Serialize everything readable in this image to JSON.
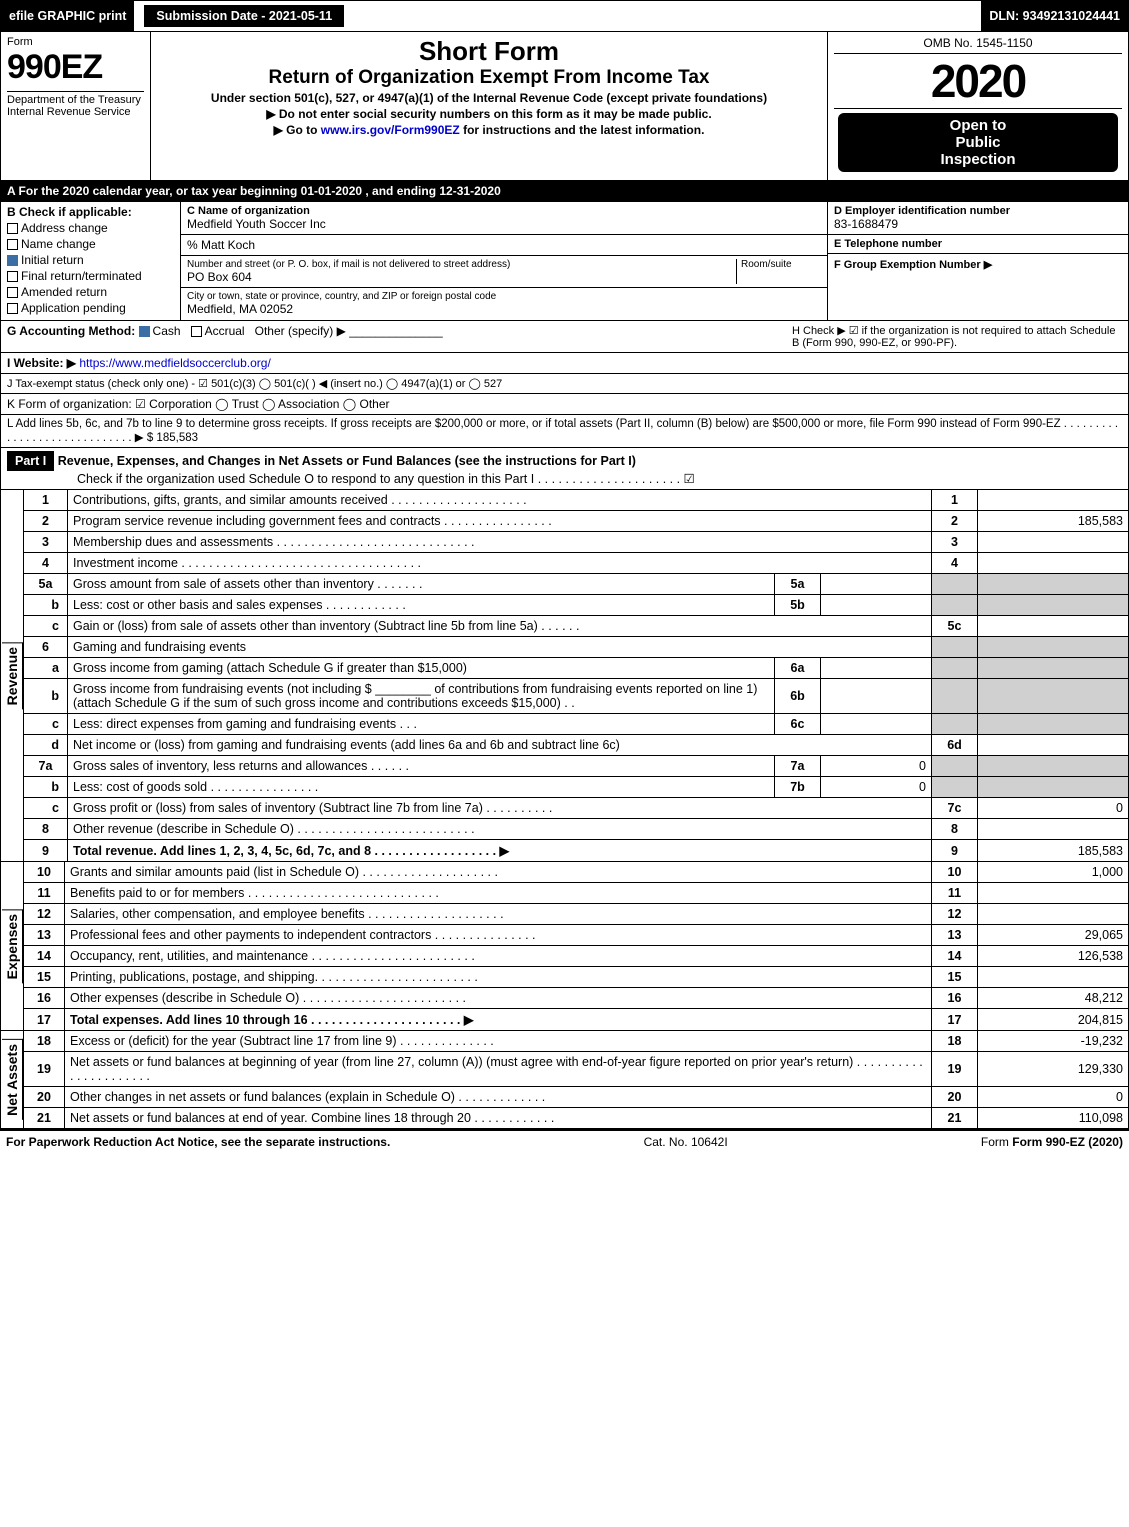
{
  "topbar": {
    "efile": "efile GRAPHIC print",
    "submission": "Submission Date - 2021-05-11",
    "dln": "DLN: 93492131024441"
  },
  "header": {
    "form_word": "Form",
    "form_number": "990EZ",
    "dept1": "Department of the Treasury",
    "dept2": "Internal Revenue Service",
    "title1": "Short Form",
    "title2": "Return of Organization Exempt From Income Tax",
    "subtitle": "Under section 501(c), 527, or 4947(a)(1) of the Internal Revenue Code (except private foundations)",
    "note1": "▶ Do not enter social security numbers on this form as it may be made public.",
    "note2_pre": "▶ Go to ",
    "note2_link": "www.irs.gov/Form990EZ",
    "note2_post": " for instructions and the latest information.",
    "omb": "OMB No. 1545-1150",
    "year": "2020",
    "inspect1": "Open to",
    "inspect2": "Public",
    "inspect3": "Inspection"
  },
  "period": "A  For the 2020 calendar year, or tax year beginning 01-01-2020 , and ending 12-31-2020",
  "section_b": {
    "heading": "B  Check if applicable:",
    "items": [
      {
        "label": "Address change",
        "checked": false
      },
      {
        "label": "Name change",
        "checked": false
      },
      {
        "label": "Initial return",
        "checked": true
      },
      {
        "label": "Final return/terminated",
        "checked": false
      },
      {
        "label": "Amended return",
        "checked": false
      },
      {
        "label": "Application pending",
        "checked": false
      }
    ]
  },
  "section_c": {
    "label_name": "C Name of organization",
    "org_name": "Medfield Youth Soccer Inc",
    "care_of": "% Matt Koch",
    "label_addr": "Number and street (or P. O. box, if mail is not delivered to street address)",
    "room": "Room/suite",
    "address": "PO Box 604",
    "label_city": "City or town, state or province, country, and ZIP or foreign postal code",
    "city": "Medfield, MA  02052"
  },
  "section_d": {
    "label": "D Employer identification number",
    "value": "83-1688479"
  },
  "section_e": {
    "label": "E Telephone number",
    "value": ""
  },
  "section_f": {
    "label": "F Group Exemption Number  ▶",
    "value": ""
  },
  "section_g": {
    "label": "G Accounting Method:",
    "cash": "Cash",
    "accrual": "Accrual",
    "other": "Other (specify) ▶"
  },
  "section_h": {
    "text": "H  Check ▶ ☑ if the organization is not required to attach Schedule B (Form 990, 990-EZ, or 990-PF)."
  },
  "section_i": {
    "label": "I Website: ▶",
    "url": "https://www.medfieldsoccerclub.org/"
  },
  "section_j": {
    "text": "J Tax-exempt status (check only one) - ☑ 501(c)(3)  ◯ 501(c)( ) ◀ (insert no.)  ◯ 4947(a)(1) or  ◯ 527"
  },
  "section_k": {
    "text": "K Form of organization:  ☑ Corporation  ◯ Trust  ◯ Association  ◯ Other"
  },
  "section_l": {
    "text": "L Add lines 5b, 6c, and 7b to line 9 to determine gross receipts. If gross receipts are $200,000 or more, or if total assets (Part II, column (B) below) are $500,000 or more, file Form 990 instead of Form 990-EZ . . . . . . . . . . . . . . . . . . . . . . . . . . . . . ▶ $ 185,583"
  },
  "part1": {
    "label": "Part I",
    "title": "Revenue, Expenses, and Changes in Net Assets or Fund Balances (see the instructions for Part I)",
    "check": "Check if the organization used Schedule O to respond to any question in this Part I . . . . . . . . . . . . . . . . . . . . . ☑"
  },
  "vlabels": {
    "revenue": "Revenue",
    "expenses": "Expenses",
    "netassets": "Net Assets"
  },
  "lines": {
    "l1": {
      "no": "1",
      "desc": "Contributions, gifts, grants, and similar amounts received . . . . . . . . . . . . . . . . . . . .",
      "ref": "1",
      "val": ""
    },
    "l2": {
      "no": "2",
      "desc": "Program service revenue including government fees and contracts . . . . . . . . . . . . . . . .",
      "ref": "2",
      "val": "185,583"
    },
    "l3": {
      "no": "3",
      "desc": "Membership dues and assessments . . . . . . . . . . . . . . . . . . . . . . . . . . . . .",
      "ref": "3",
      "val": ""
    },
    "l4": {
      "no": "4",
      "desc": "Investment income . . . . . . . . . . . . . . . . . . . . . . . . . . . . . . . . . . .",
      "ref": "4",
      "val": ""
    },
    "l5a": {
      "no": "5a",
      "desc": "Gross amount from sale of assets other than inventory . . . . . . .",
      "mid": "5a",
      "midval": ""
    },
    "l5b": {
      "no": "b",
      "desc": "Less: cost or other basis and sales expenses . . . . . . . . . . . .",
      "mid": "5b",
      "midval": ""
    },
    "l5c": {
      "no": "c",
      "desc": "Gain or (loss) from sale of assets other than inventory (Subtract line 5b from line 5a) . . . . . .",
      "ref": "5c",
      "val": ""
    },
    "l6": {
      "no": "6",
      "desc": "Gaming and fundraising events"
    },
    "l6a": {
      "no": "a",
      "desc": "Gross income from gaming (attach Schedule G if greater than $15,000)",
      "mid": "6a",
      "midval": ""
    },
    "l6b": {
      "no": "b",
      "desc1": "Gross income from fundraising events (not including $",
      "desc2": " of contributions from fundraising events reported on line 1) (attach Schedule G if the sum of such gross income and contributions exceeds $15,000)   . .",
      "mid": "6b",
      "midval": ""
    },
    "l6c": {
      "no": "c",
      "desc": "Less: direct expenses from gaming and fundraising events    . . .",
      "mid": "6c",
      "midval": ""
    },
    "l6d": {
      "no": "d",
      "desc": "Net income or (loss) from gaming and fundraising events (add lines 6a and 6b and subtract line 6c)",
      "ref": "6d",
      "val": ""
    },
    "l7a": {
      "no": "7a",
      "desc": "Gross sales of inventory, less returns and allowances . . . . . .",
      "mid": "7a",
      "midval": "0"
    },
    "l7b": {
      "no": "b",
      "desc": "Less: cost of goods sold     . . . . . . . . . . . . . . . .",
      "mid": "7b",
      "midval": "0"
    },
    "l7c": {
      "no": "c",
      "desc": "Gross profit or (loss) from sales of inventory (Subtract line 7b from line 7a) . . . . . . . . . .",
      "ref": "7c",
      "val": "0"
    },
    "l8": {
      "no": "8",
      "desc": "Other revenue (describe in Schedule O) . . . . . . . . . . . . . . . . . . . . . . . . . .",
      "ref": "8",
      "val": ""
    },
    "l9": {
      "no": "9",
      "desc": "Total revenue. Add lines 1, 2, 3, 4, 5c, 6d, 7c, and 8  . . . . . . . . . . . . . . . . . .  ▶",
      "ref": "9",
      "val": "185,583"
    },
    "l10": {
      "no": "10",
      "desc": "Grants and similar amounts paid (list in Schedule O) . . . . . . . . . . . . . . . . . . . .",
      "ref": "10",
      "val": "1,000"
    },
    "l11": {
      "no": "11",
      "desc": "Benefits paid to or for members   . . . . . . . . . . . . . . . . . . . . . . . . . . . .",
      "ref": "11",
      "val": ""
    },
    "l12": {
      "no": "12",
      "desc": "Salaries, other compensation, and employee benefits . . . . . . . . . . . . . . . . . . . .",
      "ref": "12",
      "val": ""
    },
    "l13": {
      "no": "13",
      "desc": "Professional fees and other payments to independent contractors . . . . . . . . . . . . . . .",
      "ref": "13",
      "val": "29,065"
    },
    "l14": {
      "no": "14",
      "desc": "Occupancy, rent, utilities, and maintenance . . . . . . . . . . . . . . . . . . . . . . . .",
      "ref": "14",
      "val": "126,538"
    },
    "l15": {
      "no": "15",
      "desc": "Printing, publications, postage, and shipping. . . . . . . . . . . . . . . . . . . . . . . .",
      "ref": "15",
      "val": ""
    },
    "l16": {
      "no": "16",
      "desc": "Other expenses (describe in Schedule O)    . . . . . . . . . . . . . . . . . . . . . . . .",
      "ref": "16",
      "val": "48,212"
    },
    "l17": {
      "no": "17",
      "desc": "Total expenses. Add lines 10 through 16    . . . . . . . . . . . . . . . . . . . . . .  ▶",
      "ref": "17",
      "val": "204,815"
    },
    "l18": {
      "no": "18",
      "desc": "Excess or (deficit) for the year (Subtract line 17 from line 9)      . . . . . . . . . . . . . .",
      "ref": "18",
      "val": "-19,232"
    },
    "l19": {
      "no": "19",
      "desc": "Net assets or fund balances at beginning of year (from line 27, column (A)) (must agree with end-of-year figure reported on prior year's return) . . . . . . . . . . . . . . . . . . . . . .",
      "ref": "19",
      "val": "129,330"
    },
    "l20": {
      "no": "20",
      "desc": "Other changes in net assets or fund balances (explain in Schedule O) . . . . . . . . . . . . .",
      "ref": "20",
      "val": "0"
    },
    "l21": {
      "no": "21",
      "desc": "Net assets or fund balances at end of year. Combine lines 18 through 20 . . . . . . . . . . . .",
      "ref": "21",
      "val": "110,098"
    }
  },
  "footer": {
    "left": "For Paperwork Reduction Act Notice, see the separate instructions.",
    "mid": "Cat. No. 10642I",
    "right": "Form 990-EZ (2020)"
  }
}
